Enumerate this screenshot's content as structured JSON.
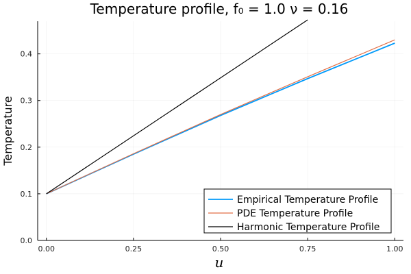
{
  "chart_data": {
    "type": "line",
    "title": "Temperature profile, f₀ = 1.0 ν = 0.16",
    "xlabel": "u",
    "ylabel": "Temperature",
    "xlim": [
      0.0,
      1.0
    ],
    "ylim": [
      0.0,
      0.47
    ],
    "x_ticks": [
      0.0,
      0.25,
      0.5,
      0.75,
      1.0
    ],
    "x_tick_labels": [
      "0.00",
      "0.25",
      "0.50",
      "0.75",
      "1.00"
    ],
    "y_ticks": [
      0.0,
      0.1,
      0.2,
      0.3,
      0.4
    ],
    "y_tick_labels": [
      "0.0",
      "0.1",
      "0.2",
      "0.3",
      "0.4"
    ],
    "grid": true,
    "legend_position": "bottom-right",
    "series": [
      {
        "name": "Empirical Temperature Profile",
        "color": "#009AFA",
        "x": [
          0.0,
          0.25,
          0.5,
          0.75,
          1.0
        ],
        "y": [
          0.1,
          0.185,
          0.268,
          0.347,
          0.423
        ]
      },
      {
        "name": "PDE Temperature Profile",
        "color": "#E26F46",
        "x": [
          0.0,
          0.25,
          0.5,
          0.75,
          1.0
        ],
        "y": [
          0.1,
          0.186,
          0.27,
          0.351,
          0.43
        ]
      },
      {
        "name": "Harmonic Temperature Profile",
        "color": "#000000",
        "x": [
          0.0,
          0.75
        ],
        "y": [
          0.1,
          0.473
        ]
      }
    ]
  }
}
